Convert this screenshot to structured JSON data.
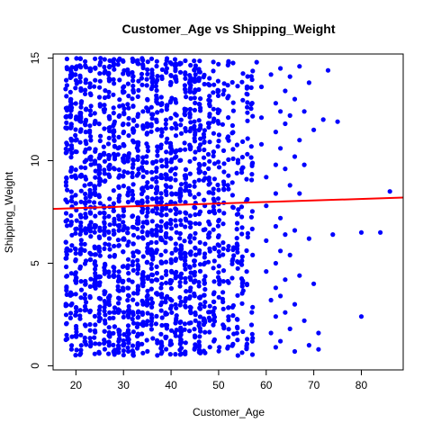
{
  "chart_data": {
    "type": "scatter",
    "title": "Customer_Age vs Shipping_Weight",
    "xlabel": "Customer_Age",
    "ylabel": "Shipping_Weight",
    "xlim": [
      15.2,
      88.8
    ],
    "ylim": [
      -0.2,
      15.2
    ],
    "xticks": [
      "20",
      "30",
      "40",
      "50",
      "60",
      "70",
      "80"
    ],
    "yticks": [
      "0",
      "5",
      "10",
      "15"
    ],
    "point_color": "#0000ff",
    "line_color": "#ff0000",
    "grid": false,
    "legend": "none",
    "trend_line": {
      "x": [
        15.2,
        88.8
      ],
      "y": [
        7.65,
        8.2
      ]
    },
    "dense_band": {
      "x_min": 18,
      "x_max": 57,
      "y_min": 0.5,
      "y_max": 15.0,
      "age_spacing": 1
    },
    "points": [
      [
        58,
        14.8
      ],
      [
        59,
        13.6
      ],
      [
        59,
        12.1
      ],
      [
        59,
        10.8
      ],
      [
        60,
        9.2
      ],
      [
        60,
        7.8
      ],
      [
        60,
        6.1
      ],
      [
        60,
        4.6
      ],
      [
        61,
        3.2
      ],
      [
        61,
        1.6
      ],
      [
        61,
        14.2
      ],
      [
        62,
        12.8
      ],
      [
        62,
        11.4
      ],
      [
        62,
        9.8
      ],
      [
        62,
        8.4
      ],
      [
        62,
        6.8
      ],
      [
        62,
        5.0
      ],
      [
        62,
        3.8
      ],
      [
        62,
        2.4
      ],
      [
        62,
        0.9
      ],
      [
        63,
        14.5
      ],
      [
        63,
        12.4
      ],
      [
        63,
        10.6
      ],
      [
        63,
        7.2
      ],
      [
        63,
        5.6
      ],
      [
        63,
        3.4
      ],
      [
        63,
        1.2
      ],
      [
        64,
        13.4
      ],
      [
        64,
        11.8
      ],
      [
        64,
        9.6
      ],
      [
        64,
        6.4
      ],
      [
        64,
        4.2
      ],
      [
        64,
        2.6
      ],
      [
        65,
        14.1
      ],
      [
        65,
        12.2
      ],
      [
        65,
        8.8
      ],
      [
        65,
        5.4
      ],
      [
        65,
        1.8
      ],
      [
        66,
        13.0
      ],
      [
        66,
        10.2
      ],
      [
        66,
        6.6
      ],
      [
        66,
        3.0
      ],
      [
        66,
        0.7
      ],
      [
        67,
        14.6
      ],
      [
        67,
        11.0
      ],
      [
        67,
        8.4
      ],
      [
        67,
        4.4
      ],
      [
        68,
        12.4
      ],
      [
        68,
        9.8
      ],
      [
        68,
        2.2
      ],
      [
        69,
        13.8
      ],
      [
        69,
        6.2
      ],
      [
        69,
        1.0
      ],
      [
        70,
        11.5
      ],
      [
        70,
        4.0
      ],
      [
        71,
        1.6
      ],
      [
        71,
        0.8
      ],
      [
        72,
        12.0
      ],
      [
        73,
        14.4
      ],
      [
        74,
        6.4
      ],
      [
        75,
        11.9
      ],
      [
        80,
        6.5
      ],
      [
        80,
        2.4
      ],
      [
        84,
        6.5
      ],
      [
        86,
        8.5
      ]
    ]
  }
}
